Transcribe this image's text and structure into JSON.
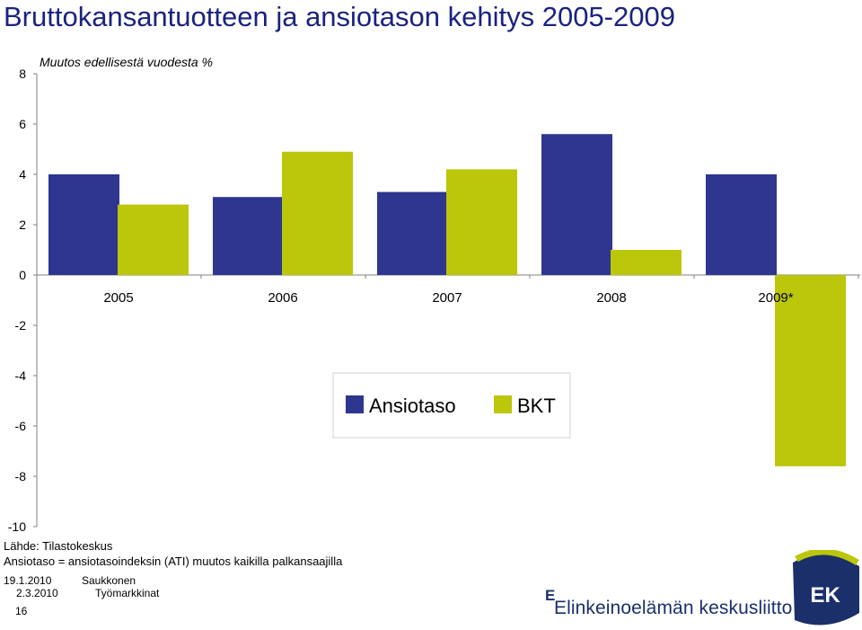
{
  "title": "Bruttokansantuotteen ja ansiotason kehitys 2005-2009",
  "chart_data": {
    "type": "bar",
    "title": "Bruttokansantuotteen ja ansiotason kehitys 2005-2009",
    "subtitle": "Muutos edellisestä vuodesta %",
    "categories": [
      "2005",
      "2006",
      "2007",
      "2008",
      "2009*"
    ],
    "series": [
      {
        "name": "Ansiotaso",
        "color": "#2e3690",
        "values": [
          4.0,
          3.1,
          3.3,
          5.6,
          4.0
        ]
      },
      {
        "name": "BKT",
        "color": "#bcc60a",
        "values": [
          2.8,
          4.9,
          4.2,
          1.0,
          -7.6
        ]
      }
    ],
    "ylim": [
      -10,
      8
    ],
    "yticks": [
      "8",
      "6",
      "4",
      "2",
      "0",
      "-2",
      "-4",
      "-6",
      "-8",
      "-10"
    ],
    "legend_position": "center",
    "grid": false
  },
  "footer": {
    "source": "Lähde: Tilastokeskus",
    "note": "Ansiotaso = ansiotasoindeksin (ATI) muutos kaikilla palkansaajilla",
    "date1": "19.1.2010",
    "date2": "2.3.2010",
    "author": "Saukkonen",
    "department": "Työmarkkinat",
    "page_number": "16"
  },
  "logo": {
    "org_name": "Elinkeinoelämän keskusliitto",
    "org_initial": "E",
    "badge": "EK"
  }
}
